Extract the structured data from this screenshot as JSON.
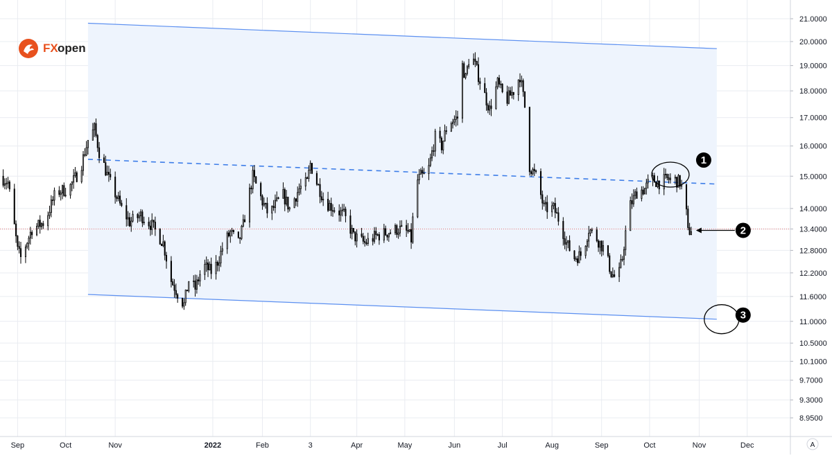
{
  "logo": {
    "text_fx": "FX",
    "text_open": "open",
    "brand_color": "#e8511e"
  },
  "colors": {
    "up_candle": "#ffffff",
    "down_candle": "#000000",
    "wick": "#000000",
    "channel_line": "#5b8ff0",
    "channel_fill": "#eef4fd",
    "midline": "#3d7de8",
    "current_price_line": "#e57373",
    "grid": "#e9ecf1"
  },
  "annotations": [
    {
      "id": "1",
      "label": "1"
    },
    {
      "id": "2",
      "label": "2"
    },
    {
      "id": "3",
      "label": "3"
    }
  ],
  "price_axis_badge": "A",
  "chart_data": {
    "type": "candlestick",
    "title": "",
    "y_scale": "log",
    "ylim": [
      8.6,
      21.6
    ],
    "yticks": [
      "21.0000",
      "20.0000",
      "19.0000",
      "18.0000",
      "17.0000",
      "16.0000",
      "15.0000",
      "14.0000",
      "13.4000",
      "12.8000",
      "12.2000",
      "11.6000",
      "11.0000",
      "10.5000",
      "10.1000",
      "9.7000",
      "9.3000",
      "8.9500"
    ],
    "xticks": [
      {
        "label": "Sep",
        "bold": false,
        "date": "2021-09-01"
      },
      {
        "label": "Oct",
        "bold": false,
        "date": "2021-10-01"
      },
      {
        "label": "Nov",
        "bold": false,
        "date": "2021-11-01"
      },
      {
        "label": "2022",
        "bold": true,
        "date": "2022-01-01"
      },
      {
        "label": "Feb",
        "bold": false,
        "date": "2022-02-01"
      },
      {
        "label": "3",
        "bold": false,
        "date": "2022-03-03"
      },
      {
        "label": "Apr",
        "bold": false,
        "date": "2022-04-01"
      },
      {
        "label": "May",
        "bold": false,
        "date": "2022-05-01"
      },
      {
        "label": "Jun",
        "bold": false,
        "date": "2022-06-01"
      },
      {
        "label": "Jul",
        "bold": false,
        "date": "2022-07-01"
      },
      {
        "label": "Aug",
        "bold": false,
        "date": "2022-08-01"
      },
      {
        "label": "Sep",
        "bold": false,
        "date": "2022-09-01"
      },
      {
        "label": "Oct",
        "bold": false,
        "date": "2022-10-01"
      },
      {
        "label": "Nov",
        "bold": false,
        "date": "2022-11-01"
      },
      {
        "label": "Dec",
        "bold": false,
        "date": "2022-12-01"
      }
    ],
    "xlim": [
      "2021-08-21",
      "2022-12-28"
    ],
    "current_price": 13.4,
    "price_path": [
      [
        "2021-08-21",
        15.0
      ],
      [
        "2021-08-26",
        14.8
      ],
      [
        "2021-09-01",
        12.8
      ],
      [
        "2021-09-03",
        12.6
      ],
      [
        "2021-09-10",
        13.4
      ],
      [
        "2021-09-18",
        13.6
      ],
      [
        "2021-09-25",
        14.5
      ],
      [
        "2021-10-03",
        14.6
      ],
      [
        "2021-10-10",
        15.2
      ],
      [
        "2021-10-15",
        16.2
      ],
      [
        "2021-10-19",
        16.6
      ],
      [
        "2021-10-22",
        15.8
      ],
      [
        "2021-10-28",
        14.9
      ],
      [
        "2021-11-05",
        14.0
      ],
      [
        "2021-11-10",
        13.6
      ],
      [
        "2021-11-17",
        13.8
      ],
      [
        "2021-11-24",
        13.5
      ],
      [
        "2021-12-01",
        13.0
      ],
      [
        "2021-12-06",
        12.0
      ],
      [
        "2021-12-11",
        11.6
      ],
      [
        "2021-12-14",
        11.4
      ],
      [
        "2021-12-17",
        12.0
      ],
      [
        "2021-12-21",
        11.8
      ],
      [
        "2021-12-26",
        12.4
      ],
      [
        "2022-01-01",
        12.2
      ],
      [
        "2022-01-05",
        12.6
      ],
      [
        "2022-01-08",
        13.0
      ],
      [
        "2022-01-12",
        13.3
      ],
      [
        "2022-01-17",
        13.0
      ],
      [
        "2022-01-20",
        13.5
      ],
      [
        "2022-01-26",
        15.0
      ],
      [
        "2022-02-01",
        14.2
      ],
      [
        "2022-02-05",
        13.8
      ],
      [
        "2022-02-09",
        14.1
      ],
      [
        "2022-02-14",
        14.4
      ],
      [
        "2022-02-18",
        14.0
      ],
      [
        "2022-02-24",
        14.6
      ],
      [
        "2022-03-01",
        14.8
      ],
      [
        "2022-03-03",
        15.4
      ],
      [
        "2022-03-07",
        14.8
      ],
      [
        "2022-03-12",
        14.2
      ],
      [
        "2022-03-18",
        14.0
      ],
      [
        "2022-03-24",
        13.8
      ],
      [
        "2022-03-30",
        13.2
      ],
      [
        "2022-04-06",
        13.0
      ],
      [
        "2022-04-13",
        13.2
      ],
      [
        "2022-04-20",
        13.3
      ],
      [
        "2022-04-27",
        13.4
      ],
      [
        "2022-05-03",
        13.3
      ],
      [
        "2022-05-05",
        13.1
      ],
      [
        "2022-05-08",
        14.8
      ],
      [
        "2022-05-11",
        15.0
      ],
      [
        "2022-05-15",
        15.0
      ],
      [
        "2022-05-20",
        16.3
      ],
      [
        "2022-05-24",
        16.0
      ],
      [
        "2022-05-28",
        16.8
      ],
      [
        "2022-06-03",
        17.0
      ],
      [
        "2022-06-06",
        19.0
      ],
      [
        "2022-06-08",
        18.5
      ],
      [
        "2022-06-11",
        19.6
      ],
      [
        "2022-06-14",
        19.0
      ],
      [
        "2022-06-19",
        18.0
      ],
      [
        "2022-06-23",
        17.3
      ],
      [
        "2022-06-28",
        18.3
      ],
      [
        "2022-07-03",
        17.6
      ],
      [
        "2022-07-08",
        18.0
      ],
      [
        "2022-07-12",
        18.6
      ],
      [
        "2022-07-15",
        17.4
      ],
      [
        "2022-07-17",
        15.4
      ],
      [
        "2022-07-22",
        15.0
      ],
      [
        "2022-07-27",
        14.0
      ],
      [
        "2022-08-02",
        14.0
      ],
      [
        "2022-08-06",
        13.6
      ],
      [
        "2022-08-10",
        13.0
      ],
      [
        "2022-08-15",
        12.6
      ],
      [
        "2022-08-20",
        12.7
      ],
      [
        "2022-08-24",
        13.4
      ],
      [
        "2022-08-28",
        13.2
      ],
      [
        "2022-09-03",
        12.8
      ],
      [
        "2022-09-07",
        12.2
      ],
      [
        "2022-09-11",
        12.0
      ],
      [
        "2022-09-14",
        12.6
      ],
      [
        "2022-09-18",
        14.0
      ],
      [
        "2022-09-23",
        14.5
      ],
      [
        "2022-09-28",
        14.6
      ],
      [
        "2022-10-02",
        14.9
      ],
      [
        "2022-10-07",
        14.8
      ],
      [
        "2022-10-12",
        14.9
      ],
      [
        "2022-10-16",
        14.9
      ],
      [
        "2022-10-20",
        14.8
      ],
      [
        "2022-10-23",
        14.4
      ],
      [
        "2022-10-25",
        13.3
      ],
      [
        "2022-10-27",
        13.4
      ]
    ],
    "channel": {
      "start_date": "2021-10-15",
      "end_date": "2022-11-12",
      "upper": [
        20.8,
        19.7
      ],
      "middle": [
        15.55,
        14.75
      ],
      "lower": [
        11.65,
        11.05
      ]
    },
    "markers": [
      {
        "id": "1",
        "date": "2022-10-14",
        "price": 15.05
      },
      {
        "id": "2",
        "date": "2022-10-30",
        "price": 13.4
      },
      {
        "id": "3",
        "date": "2022-11-15",
        "price": 11.05
      }
    ]
  }
}
